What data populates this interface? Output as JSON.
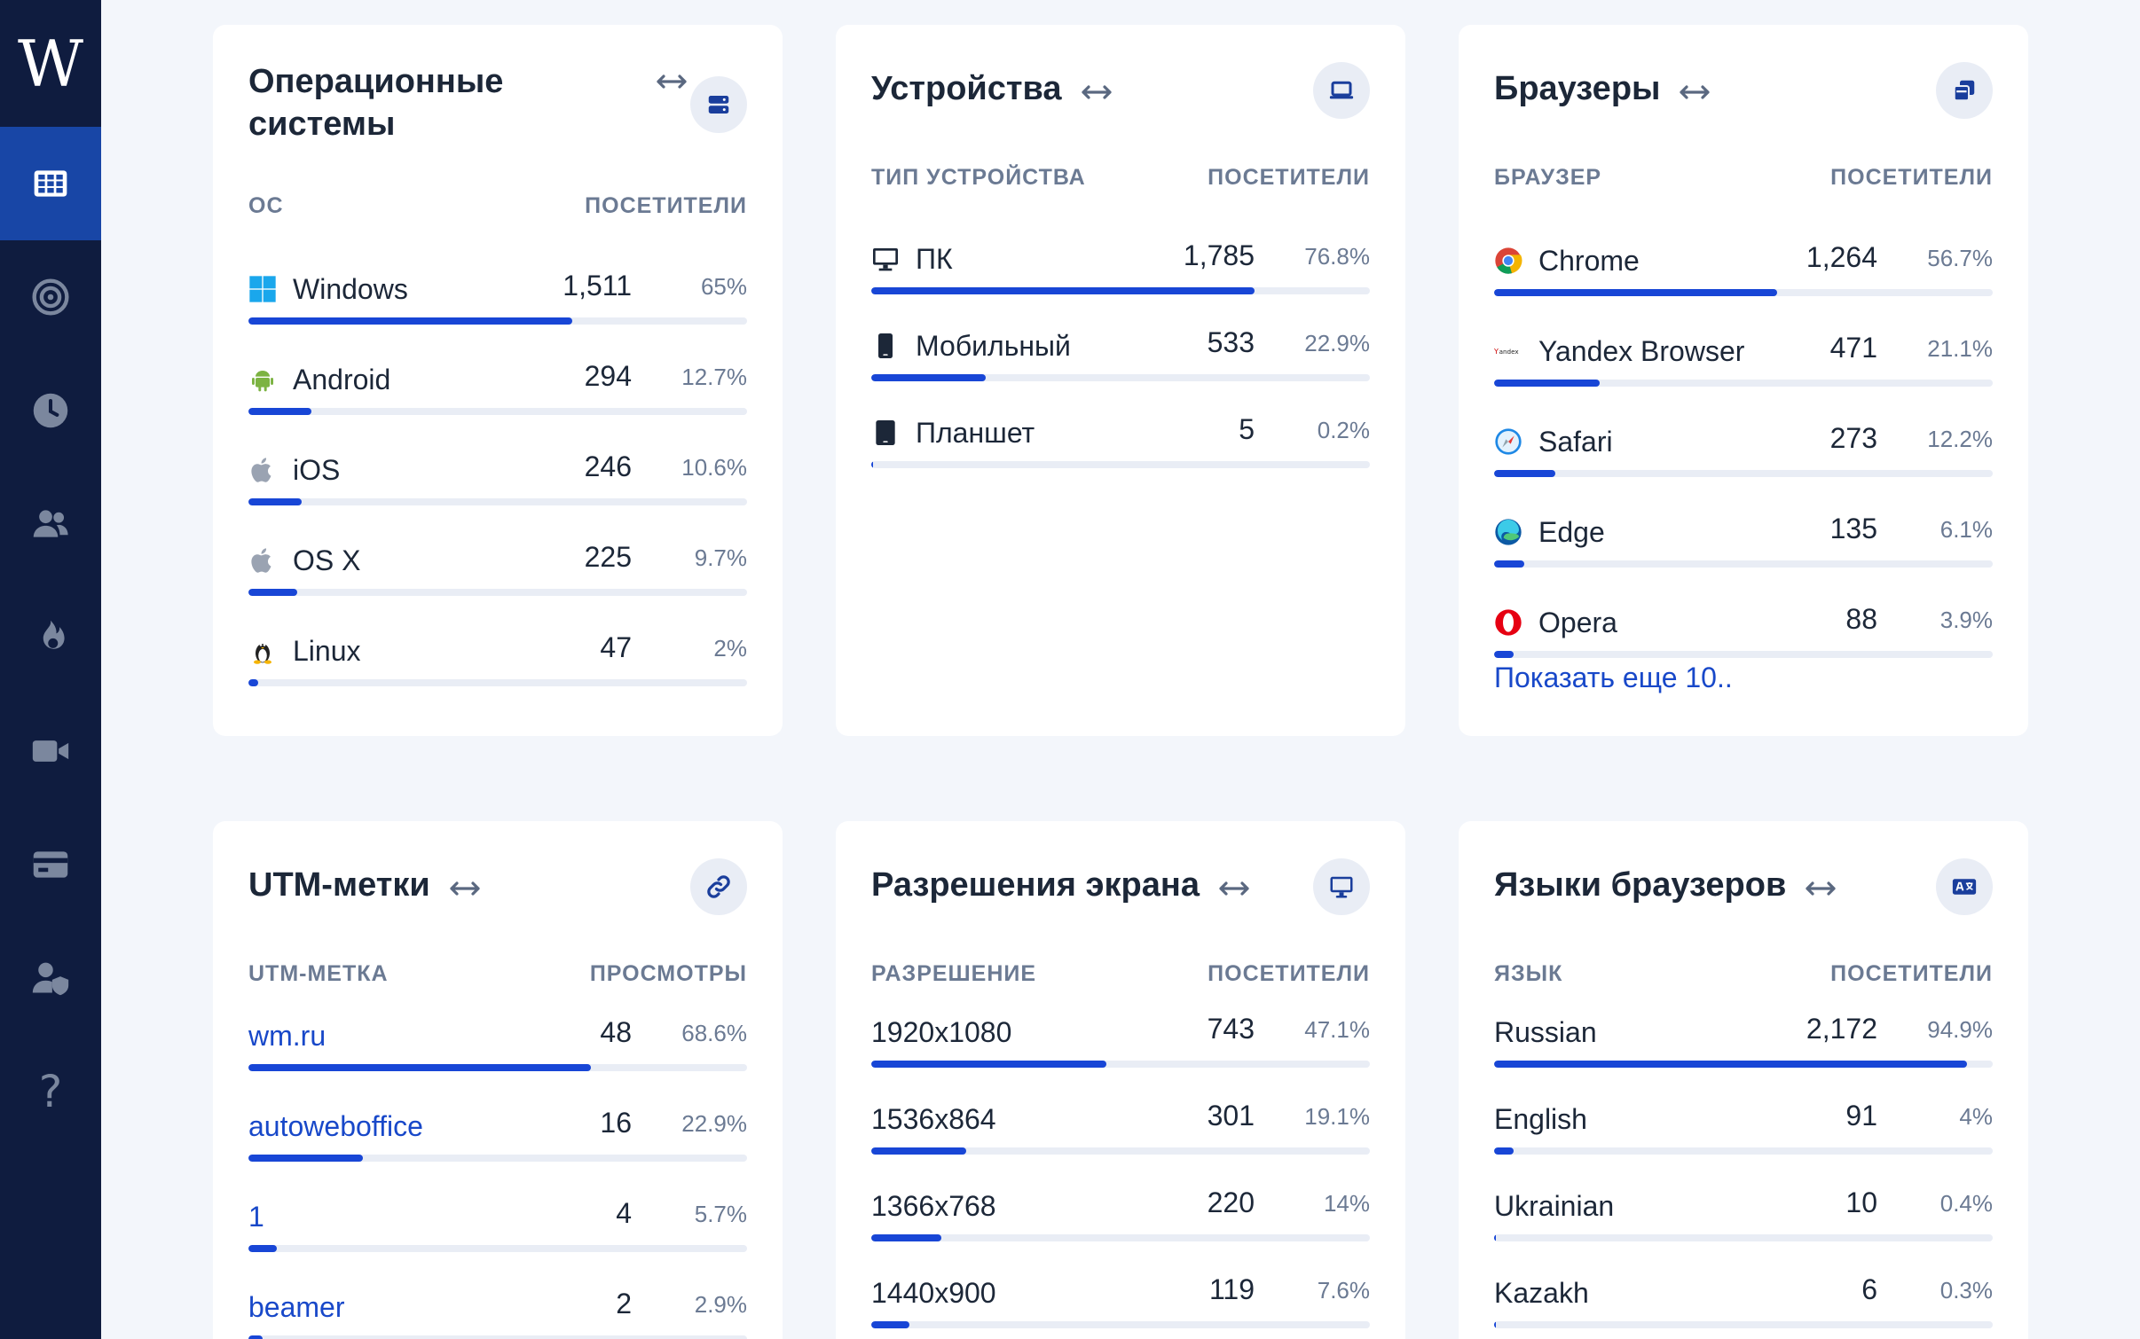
{
  "sidebar": {
    "logo": "W",
    "items": [
      {
        "icon": "grid-icon",
        "active": true
      },
      {
        "icon": "target-icon"
      },
      {
        "icon": "clock-icon"
      },
      {
        "icon": "users-icon"
      },
      {
        "icon": "fire-icon"
      },
      {
        "icon": "video-icon"
      },
      {
        "icon": "card-icon"
      },
      {
        "icon": "user-shield-icon"
      },
      {
        "icon": "help-icon",
        "glyph": "?"
      }
    ]
  },
  "colors": {
    "accent": "#1846d6",
    "sidebar": "#0f1c3f",
    "sidebar_active": "#1846a6",
    "link": "#1848c9"
  },
  "cards": {
    "os": {
      "title_line1": "Операционные",
      "title_line2": "системы",
      "col_label": "ОС",
      "col_value": "ПОСЕТИТЕЛИ",
      "icon": "server-icon",
      "rows": [
        {
          "label": "Windows",
          "count": "1,511",
          "pct": "65%",
          "value": 65,
          "icon": "windows-icon"
        },
        {
          "label": "Android",
          "count": "294",
          "pct": "12.7%",
          "value": 12.7,
          "icon": "android-icon"
        },
        {
          "label": "iOS",
          "count": "246",
          "pct": "10.6%",
          "value": 10.6,
          "icon": "apple-icon"
        },
        {
          "label": "OS X",
          "count": "225",
          "pct": "9.7%",
          "value": 9.7,
          "icon": "apple-icon"
        },
        {
          "label": "Linux",
          "count": "47",
          "pct": "2%",
          "value": 2,
          "icon": "linux-icon"
        }
      ]
    },
    "devices": {
      "title": "Устройства",
      "col_label": "ТИП УСТРОЙСТВА",
      "col_value": "ПОСЕТИТЕЛИ",
      "icon": "laptop-icon",
      "rows": [
        {
          "label": "ПК",
          "count": "1,785",
          "pct": "76.8%",
          "value": 76.8,
          "icon": "desktop-icon"
        },
        {
          "label": "Мобильный",
          "count": "533",
          "pct": "22.9%",
          "value": 22.9,
          "icon": "mobile-icon"
        },
        {
          "label": "Планшет",
          "count": "5",
          "pct": "0.2%",
          "value": 0.2,
          "icon": "tablet-icon"
        }
      ]
    },
    "browsers": {
      "title": "Браузеры",
      "col_label": "БРАУЗЕР",
      "col_value": "ПОСЕТИТЕЛИ",
      "icon": "windows-stack-icon",
      "rows": [
        {
          "label": "Chrome",
          "count": "1,264",
          "pct": "56.7%",
          "value": 56.7,
          "icon": "chrome-icon"
        },
        {
          "label": "Yandex Browser",
          "count": "471",
          "pct": "21.1%",
          "value": 21.1,
          "icon": "yandex-icon"
        },
        {
          "label": "Safari",
          "count": "273",
          "pct": "12.2%",
          "value": 12.2,
          "icon": "safari-icon"
        },
        {
          "label": "Edge",
          "count": "135",
          "pct": "6.1%",
          "value": 6.1,
          "icon": "edge-icon"
        },
        {
          "label": "Opera",
          "count": "88",
          "pct": "3.9%",
          "value": 3.9,
          "icon": "opera-icon"
        }
      ],
      "more": "Показать еще 10.."
    },
    "utm": {
      "title": "UTM-метки",
      "col_label": "UTM-МЕТКА",
      "col_value": "ПРОСМОТРЫ",
      "icon": "link-icon",
      "rows": [
        {
          "label": "wm.ru",
          "count": "48",
          "pct": "68.6%",
          "value": 68.6
        },
        {
          "label": "autoweboffice",
          "count": "16",
          "pct": "22.9%",
          "value": 22.9
        },
        {
          "label": "1",
          "count": "4",
          "pct": "5.7%",
          "value": 5.7
        },
        {
          "label": "beamer",
          "count": "2",
          "pct": "2.9%",
          "value": 2.9
        }
      ]
    },
    "resolutions": {
      "title": "Разрешения экрана",
      "col_label": "РАЗРЕШЕНИЕ",
      "col_value": "ПОСЕТИТЕЛИ",
      "icon": "monitor-icon",
      "rows": [
        {
          "label": "1920x1080",
          "count": "743",
          "pct": "47.1%",
          "value": 47.1
        },
        {
          "label": "1536x864",
          "count": "301",
          "pct": "19.1%",
          "value": 19.1
        },
        {
          "label": "1366x768",
          "count": "220",
          "pct": "14%",
          "value": 14
        },
        {
          "label": "1440x900",
          "count": "119",
          "pct": "7.6%",
          "value": 7.6
        }
      ]
    },
    "languages": {
      "title": "Языки браузеров",
      "col_label": "ЯЗЫК",
      "col_value": "ПОСЕТИТЕЛИ",
      "icon": "language-icon",
      "rows": [
        {
          "label": "Russian",
          "count": "2,172",
          "pct": "94.9%",
          "value": 94.9
        },
        {
          "label": "English",
          "count": "91",
          "pct": "4%",
          "value": 4
        },
        {
          "label": "Ukrainian",
          "count": "10",
          "pct": "0.4%",
          "value": 0.4
        },
        {
          "label": "Kazakh",
          "count": "6",
          "pct": "0.3%",
          "value": 0.3
        }
      ]
    }
  }
}
